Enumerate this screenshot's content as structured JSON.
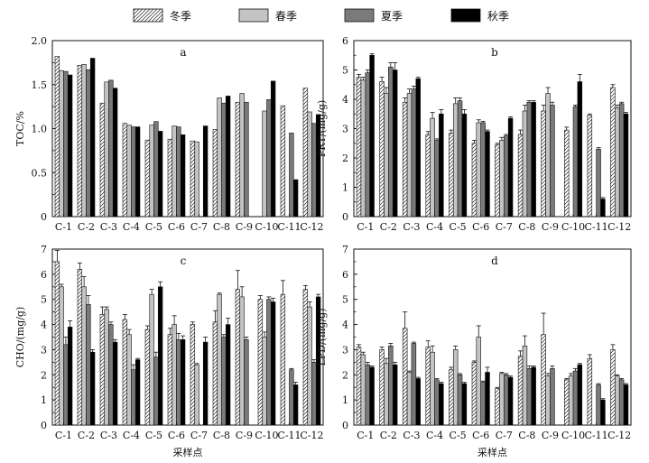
{
  "legend": {
    "series": [
      {
        "name": "冬季",
        "style": "hatch",
        "color": "#ffffff"
      },
      {
        "name": "春季",
        "style": "solid",
        "color": "#c4c4c4"
      },
      {
        "name": "夏季",
        "style": "solid",
        "color": "#7a7a7a"
      },
      {
        "name": "秋季",
        "style": "solid",
        "color": "#000000"
      }
    ]
  },
  "chart_data": [
    {
      "type": "bar",
      "panel_label": "a",
      "ylabel": "TOC/%",
      "xlabel": "",
      "ylim": [
        0,
        2.0
      ],
      "yticks": [
        "0",
        "0.5",
        "1.0",
        "1.5",
        "2.0"
      ],
      "categories": [
        "C-1",
        "C-2",
        "C-3",
        "C-4",
        "C-5",
        "C-6",
        "C-7",
        "C-8",
        "C-9",
        "C-10",
        "C-11",
        "C-12"
      ],
      "series": [
        {
          "name": "冬季",
          "values": [
            1.82,
            1.72,
            1.29,
            1.06,
            0.87,
            0.88,
            0.86,
            0.99,
            1.3,
            null,
            1.26,
            1.46
          ]
        },
        {
          "name": "春季",
          "values": [
            1.66,
            1.73,
            1.53,
            1.04,
            1.04,
            1.03,
            0.85,
            1.35,
            1.4,
            1.2,
            null,
            1.19
          ]
        },
        {
          "name": "夏季",
          "values": [
            1.65,
            1.67,
            1.55,
            1.02,
            1.08,
            1.02,
            null,
            1.29,
            1.3,
            1.33,
            0.95,
            1.06
          ]
        },
        {
          "name": "秋季",
          "values": [
            1.61,
            1.8,
            1.46,
            1.02,
            0.97,
            0.93,
            1.03,
            1.37,
            null,
            1.54,
            0.42,
            1.16
          ]
        }
      ],
      "errors": [
        [
          0,
          0,
          0,
          0,
          0,
          0,
          0,
          0,
          0,
          0,
          0,
          0
        ],
        [
          0,
          0,
          0,
          0,
          0,
          0,
          0,
          0,
          0,
          0,
          0,
          0
        ],
        [
          0,
          0,
          0,
          0,
          0,
          0,
          0,
          0,
          0,
          0,
          0,
          0
        ],
        [
          0,
          0,
          0,
          0,
          0,
          0,
          0,
          0,
          0,
          0,
          0,
          0
        ]
      ]
    },
    {
      "type": "bar",
      "panel_label": "b",
      "ylabel": "PRT/(mg/g)",
      "xlabel": "",
      "ylim": [
        0,
        6
      ],
      "yticks": [
        "0",
        "1",
        "2",
        "3",
        "4",
        "5",
        "6"
      ],
      "categories": [
        "C-1",
        "C-2",
        "C-3",
        "C-4",
        "C-5",
        "C-6",
        "C-7",
        "C-8",
        "C-9",
        "C-10",
        "C-11",
        "C-12"
      ],
      "series": [
        {
          "name": "冬季",
          "values": [
            4.75,
            4.6,
            3.9,
            2.8,
            2.85,
            2.5,
            2.45,
            2.8,
            3.6,
            2.95,
            3.45,
            4.4
          ]
        },
        {
          "name": "春季",
          "values": [
            4.65,
            4.2,
            4.2,
            3.35,
            3.85,
            3.2,
            2.6,
            3.6,
            4.2,
            null,
            null,
            3.7
          ]
        },
        {
          "name": "夏季",
          "values": [
            4.9,
            5.1,
            4.35,
            2.6,
            3.95,
            3.2,
            2.75,
            3.9,
            3.8,
            3.75,
            2.3,
            3.85
          ]
        },
        {
          "name": "秋季",
          "values": [
            5.5,
            5.0,
            4.7,
            3.5,
            3.5,
            2.9,
            3.35,
            3.9,
            null,
            4.6,
            0.6,
            3.5
          ]
        }
      ],
      "errors": [
        [
          0.1,
          0.15,
          0.15,
          0.1,
          0.1,
          0.1,
          0.05,
          0.15,
          0.2,
          0.1,
          0.05,
          0.1
        ],
        [
          0.1,
          0.2,
          0.15,
          0.2,
          0.2,
          0.1,
          0.1,
          0.2,
          0.2,
          0,
          0,
          0.1
        ],
        [
          0.1,
          0.15,
          0.1,
          0.05,
          0.1,
          0.05,
          0.05,
          0.05,
          0.1,
          0.05,
          0.05,
          0.05
        ],
        [
          0.05,
          0.25,
          0.05,
          0.15,
          0.15,
          0.05,
          0.05,
          0.05,
          0,
          0.25,
          0.05,
          0.05
        ]
      ]
    },
    {
      "type": "bar",
      "panel_label": "c",
      "ylabel": "CHO/(mg/g)",
      "xlabel": "采样点",
      "ylim": [
        0,
        7
      ],
      "yticks": [
        "0",
        "1",
        "2",
        "3",
        "4",
        "5",
        "6",
        "7"
      ],
      "categories": [
        "C-1",
        "C-2",
        "C-3",
        "C-4",
        "C-5",
        "C-6",
        "C-7",
        "C-8",
        "C-9",
        "C-10",
        "C-11",
        "C-12"
      ],
      "series": [
        {
          "name": "冬季",
          "values": [
            6.5,
            6.2,
            4.4,
            4.2,
            3.8,
            3.6,
            4.0,
            4.1,
            5.4,
            5.0,
            5.2,
            5.4
          ]
        },
        {
          "name": "春季",
          "values": [
            5.5,
            5.5,
            4.6,
            3.6,
            5.2,
            4.0,
            2.4,
            5.2,
            5.1,
            3.5,
            null,
            4.7
          ]
        },
        {
          "name": "夏季",
          "values": [
            3.2,
            4.8,
            4.0,
            2.2,
            2.7,
            3.4,
            null,
            3.5,
            3.4,
            5.0,
            2.2,
            2.5
          ]
        },
        {
          "name": "秋季",
          "values": [
            3.9,
            2.9,
            3.3,
            2.6,
            5.5,
            3.4,
            3.3,
            4.0,
            null,
            4.9,
            1.6,
            5.1
          ]
        }
      ],
      "errors": [
        [
          0.45,
          0.25,
          0.3,
          0.2,
          0.15,
          0.25,
          0.1,
          0.45,
          0.75,
          0.15,
          0.55,
          0.15
        ],
        [
          0.1,
          0.4,
          0.1,
          0.2,
          0.2,
          0.35,
          0.05,
          0.05,
          0.4,
          0.2,
          0,
          0.2
        ],
        [
          0.3,
          0.35,
          0.1,
          0.2,
          0.2,
          0.25,
          0,
          0.1,
          0.1,
          0.1,
          0.05,
          0.1
        ],
        [
          0.25,
          0.1,
          0.1,
          0.05,
          0.2,
          0.15,
          0.2,
          0.25,
          0,
          0.15,
          0.1,
          0.1
        ]
      ]
    },
    {
      "type": "bar",
      "panel_label": "d",
      "ylabel": "LPD/(mg/g)",
      "xlabel": "采样点",
      "ylim": [
        0,
        7
      ],
      "yticks": [
        "0",
        "1",
        "2",
        "3",
        "4",
        "5",
        "6",
        "7"
      ],
      "categories": [
        "C-1",
        "C-2",
        "C-3",
        "C-4",
        "C-5",
        "C-6",
        "C-7",
        "C-8",
        "C-9",
        "C-10",
        "C-11",
        "C-12"
      ],
      "series": [
        {
          "name": "冬季",
          "values": [
            3.1,
            3.0,
            3.85,
            3.1,
            2.2,
            2.5,
            1.45,
            2.75,
            3.6,
            1.8,
            2.65,
            3.0
          ]
        },
        {
          "name": "春季",
          "values": [
            2.8,
            2.45,
            2.1,
            2.9,
            3.0,
            3.5,
            2.05,
            3.15,
            1.95,
            1.95,
            null,
            1.95
          ]
        },
        {
          "name": "夏季",
          "values": [
            2.4,
            3.15,
            3.25,
            1.8,
            2.0,
            1.7,
            2.0,
            2.25,
            2.25,
            2.15,
            1.6,
            1.8
          ]
        },
        {
          "name": "秋季",
          "values": [
            2.3,
            2.4,
            1.85,
            1.65,
            1.65,
            2.1,
            1.9,
            2.3,
            null,
            2.4,
            1.0,
            1.6
          ]
        }
      ],
      "errors": [
        [
          0.1,
          0.1,
          0.65,
          0.25,
          0.1,
          0.05,
          0.05,
          0.2,
          0.85,
          0.05,
          0.15,
          0.2
        ],
        [
          0.1,
          0.2,
          0.05,
          0.25,
          0.15,
          0.45,
          0.05,
          0.4,
          0.1,
          0.1,
          0,
          0.05
        ],
        [
          0.1,
          0.1,
          0.05,
          0.05,
          0.05,
          0.05,
          0.05,
          0.1,
          0.1,
          0.1,
          0.05,
          0.05
        ],
        [
          0.05,
          0.1,
          0.05,
          0.05,
          0.05,
          0.2,
          0.05,
          0.05,
          0,
          0.05,
          0.05,
          0.05
        ]
      ]
    }
  ]
}
